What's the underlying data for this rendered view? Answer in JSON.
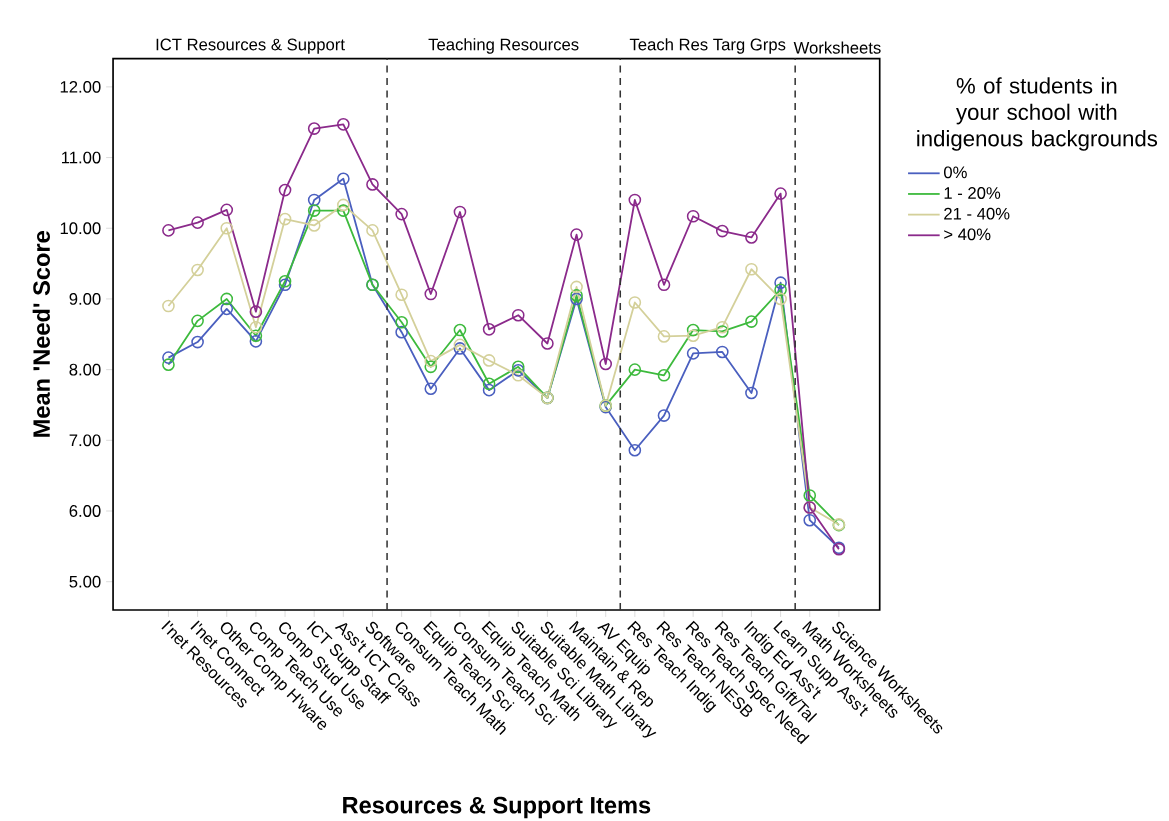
{
  "chart_data": {
    "type": "line",
    "xlabel": "Resources & Support Items",
    "ylabel": "Mean 'Need' Score",
    "legend_title": "% of students in your school with indigenous backgrounds",
    "legend": "right",
    "marker": "circle",
    "grid": false,
    "categories": [
      "I'net Resources",
      "I'net Connect",
      "Other Comp H'ware",
      "Comp Teach Use",
      "Comp Stud Use",
      "ICT Supp Staff",
      "Ass't ICT Class",
      "Software",
      "Consum Teach Math",
      "Equip Teach Sci",
      "Consum Teach Sci",
      "Equip Teach Math",
      "Suitable Sci Library",
      "Suitable Math Library",
      "Maintain & Rep",
      "AV Equip",
      "Res Teach Indig",
      "Res Teach NESB",
      "Res Teach Spec Need",
      "Res Teach Gift/Tal",
      "Indig Ed Ass't",
      "Learn Supp Ass't",
      "Math Worksheets",
      "Science Worksheets"
    ],
    "ylim": [
      4.6,
      12.4
    ],
    "yticks": [
      {
        "value": 5,
        "label": "5.00"
      },
      {
        "value": 6,
        "label": "6.00"
      },
      {
        "value": 7,
        "label": "7.00"
      },
      {
        "value": 8,
        "label": "8.00"
      },
      {
        "value": 9,
        "label": "9.00"
      },
      {
        "value": 10,
        "label": "10.00"
      },
      {
        "value": 11,
        "label": "11.00"
      },
      {
        "value": 12,
        "label": "12.00"
      }
    ],
    "series": [
      {
        "name": "0%",
        "color": "#4a5fbf",
        "values": [
          8.17,
          8.39,
          8.86,
          8.4,
          9.2,
          10.4,
          10.7,
          9.2,
          8.53,
          7.73,
          8.3,
          7.71,
          7.99,
          7.6,
          9.0,
          7.47,
          6.86,
          7.35,
          8.23,
          8.25,
          7.67,
          9.23,
          5.87,
          5.48
        ]
      },
      {
        "name": "1 - 20%",
        "color": "#3dba3d",
        "values": [
          8.07,
          8.69,
          9.0,
          8.48,
          9.25,
          10.25,
          10.25,
          9.2,
          8.67,
          8.04,
          8.56,
          7.8,
          8.04,
          7.6,
          9.05,
          7.49,
          8.0,
          7.92,
          8.56,
          8.54,
          8.68,
          9.13,
          6.22,
          5.8
        ]
      },
      {
        "name": "21 - 40%",
        "color": "#d4d09a",
        "values": [
          8.9,
          9.41,
          10.0,
          8.6,
          10.13,
          10.04,
          10.33,
          9.97,
          9.06,
          8.12,
          8.35,
          8.13,
          7.92,
          7.6,
          9.17,
          7.49,
          8.95,
          8.47,
          8.48,
          8.6,
          9.42,
          9.0,
          6.05,
          5.81
        ]
      },
      {
        "name": "> 40%",
        "color": "#8b2a8b",
        "values": [
          9.97,
          10.08,
          10.26,
          8.82,
          10.54,
          11.41,
          11.47,
          10.62,
          10.2,
          9.07,
          10.23,
          8.57,
          8.77,
          8.37,
          9.91,
          8.08,
          10.4,
          9.2,
          10.17,
          9.96,
          9.87,
          10.49,
          6.05,
          5.46
        ]
      }
    ],
    "annotations": [
      "ICT Resources & Support",
      "Teaching Resources",
      "Teach Res Targ Grps",
      "Worksheets"
    ]
  }
}
